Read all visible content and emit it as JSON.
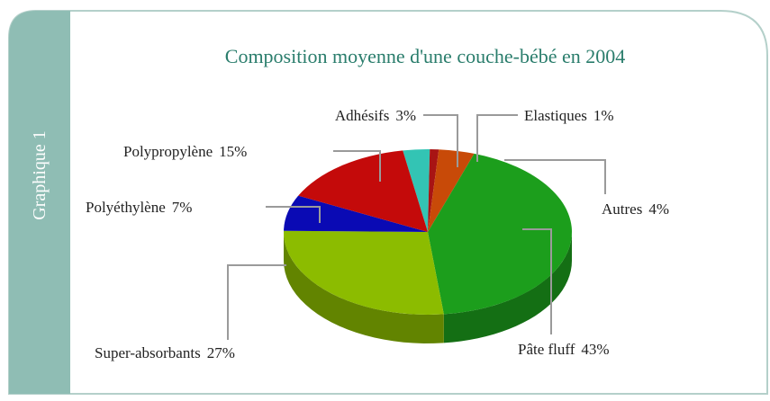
{
  "panel_label": "Graphique 1",
  "chart_data": {
    "type": "pie3d",
    "title": "Composition moyenne d'une couche-bébé en 2004",
    "categories": [
      "Adhésifs",
      "Elastiques",
      "Autres",
      "Pâte fluff",
      "Super-absorbants",
      "Polyéthylène",
      "Polypropylène"
    ],
    "values": [
      3,
      1,
      4,
      43,
      27,
      7,
      15
    ],
    "value_labels": [
      "3%",
      "1%",
      "4%",
      "43%",
      "27%",
      "7%",
      "15%"
    ],
    "colors": [
      "#33c4b4",
      "#a81414",
      "#c84a08",
      "#1c9e1c",
      "#8cbc00",
      "#0a0ab4",
      "#c40a0a"
    ]
  }
}
